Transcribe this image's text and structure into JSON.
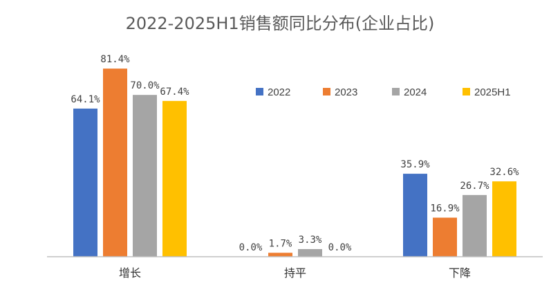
{
  "chart_data": {
    "type": "bar",
    "title": "2022-2025H1销售额同比分布(企业占比)",
    "categories": [
      "增长",
      "持平",
      "下降"
    ],
    "series": [
      {
        "name": "2022",
        "color": "#4472C4",
        "values": [
          64.1,
          0.0,
          35.9
        ],
        "labels": [
          "64.1%",
          "0.0%",
          "35.9%"
        ]
      },
      {
        "name": "2023",
        "color": "#ED7D31",
        "values": [
          81.4,
          1.7,
          16.9
        ],
        "labels": [
          "81.4%",
          "1.7%",
          "16.9%"
        ]
      },
      {
        "name": "2024",
        "color": "#A5A5A5",
        "values": [
          70.0,
          3.3,
          26.7
        ],
        "labels": [
          "70.0%",
          "3.3%",
          "26.7%"
        ]
      },
      {
        "name": "2025H1",
        "color": "#FFC000",
        "values": [
          67.4,
          0.0,
          32.6
        ],
        "labels": [
          "67.4%",
          "0.0%",
          "32.6%"
        ]
      }
    ],
    "ylim": [
      0,
      100
    ],
    "grid": false,
    "legend": "top-right"
  }
}
